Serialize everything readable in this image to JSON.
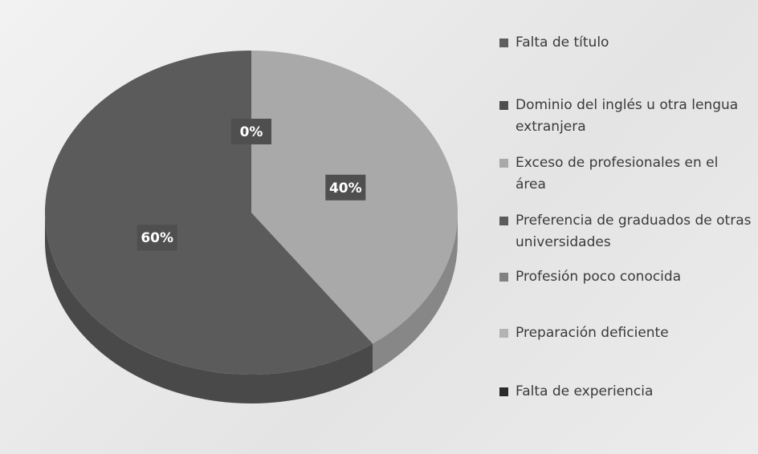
{
  "chart_data": {
    "type": "pie",
    "categories": [
      "Falta de título",
      "Dominio del inglés u otra lengua extranjera",
      "Exceso de profesionales en el área",
      "Preferencia de graduados de otras universidades",
      "Profesión poco conocida",
      "Preparación deficiente",
      "Falta de experiencia"
    ],
    "values": [
      0,
      0,
      40,
      60,
      0,
      0,
      0
    ],
    "value_labels": [
      "0%",
      null,
      "40%",
      "60%",
      null,
      null,
      null
    ],
    "colors": [
      "#5e5e5e",
      "#4d4d4d",
      "#a9a9a9",
      "#5b5b5b",
      "#808080",
      "#b3b3b3",
      "#2b2b2b"
    ],
    "legend": "right"
  }
}
